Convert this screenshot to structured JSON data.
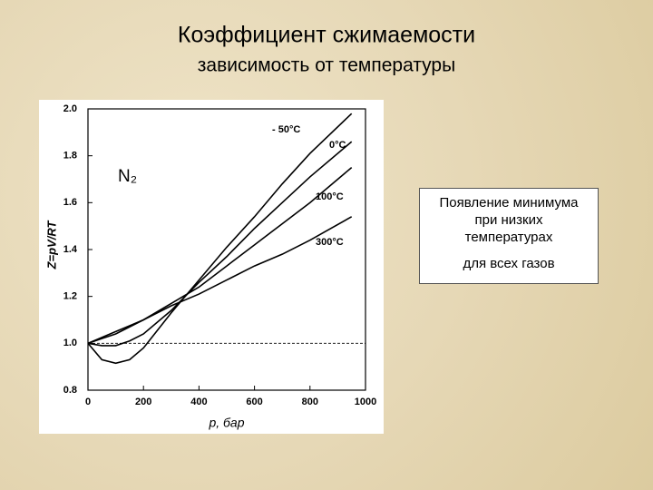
{
  "chart_data": {
    "type": "line",
    "title": "Коэффициент сжимаемости",
    "subtitle": "зависимость от температуры",
    "annotation": "N₂",
    "x_label": "p, бар",
    "y_label": "Z=pV/RT",
    "x": [
      0,
      50,
      100,
      150,
      200,
      300,
      400,
      500,
      600,
      700,
      800,
      950
    ],
    "series": [
      {
        "name": "- 50°C",
        "color": "#000000",
        "values": [
          1.0,
          0.93,
          0.915,
          0.93,
          0.98,
          1.13,
          1.27,
          1.41,
          1.54,
          1.68,
          1.81,
          1.98
        ]
      },
      {
        "name": "0°C",
        "color": "#000000",
        "values": [
          1.0,
          0.99,
          0.99,
          1.01,
          1.04,
          1.14,
          1.26,
          1.37,
          1.49,
          1.6,
          1.71,
          1.86
        ]
      },
      {
        "name": "100°C",
        "color": "#000000",
        "values": [
          1.0,
          1.02,
          1.04,
          1.07,
          1.1,
          1.17,
          1.24,
          1.33,
          1.42,
          1.51,
          1.6,
          1.75
        ]
      },
      {
        "name": "300°C",
        "color": "#000000",
        "values": [
          1.0,
          1.025,
          1.05,
          1.075,
          1.1,
          1.16,
          1.21,
          1.27,
          1.33,
          1.38,
          1.44,
          1.54
        ]
      }
    ],
    "reference_line": 1.0,
    "xlim": [
      0,
      1000
    ],
    "xticks": [
      0,
      200,
      400,
      600,
      800,
      1000
    ],
    "ylim": [
      0.8,
      2.0
    ],
    "yticks": [
      {
        "value": 0.8,
        "label": "0.8"
      },
      {
        "value": 1.0,
        "label": "1.0"
      },
      1.2,
      1.4,
      1.6,
      1.8,
      {
        "value": 2.0,
        "label": "2.0"
      }
    ],
    "note": [
      "Появление минимума",
      "при низких",
      "температурах",
      "для всех газов"
    ]
  }
}
